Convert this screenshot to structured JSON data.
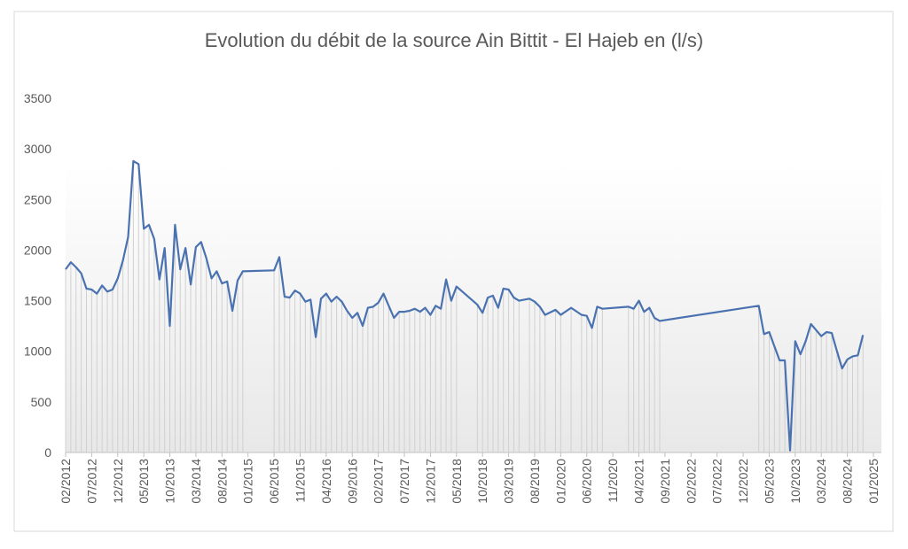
{
  "chart_data": {
    "type": "line",
    "title": "Evolution du débit de la source Ain Bittit - El Hajeb en (l/s)",
    "color": "#4a72b0",
    "drop_lines": true,
    "x": [
      "02/2012",
      "03/2012",
      "04/2012",
      "05/2012",
      "06/2012",
      "07/2012",
      "08/2012",
      "09/2012",
      "10/2012",
      "11/2012",
      "12/2012",
      "01/2013",
      "02/2013",
      "03/2013",
      "04/2013",
      "05/2013",
      "06/2013",
      "07/2013",
      "08/2013",
      "09/2013",
      "10/2013",
      "11/2013",
      "12/2013",
      "01/2014",
      "02/2014",
      "03/2014",
      "04/2014",
      "05/2014",
      "06/2014",
      "07/2014",
      "08/2014",
      "09/2014",
      "10/2014",
      "11/2014",
      "12/2014",
      "06/2015",
      "07/2015",
      "08/2015",
      "09/2015",
      "10/2015",
      "11/2015",
      "12/2015",
      "01/2016",
      "02/2016",
      "03/2016",
      "04/2016",
      "05/2016",
      "06/2016",
      "07/2016",
      "08/2016",
      "09/2016",
      "10/2016",
      "11/2016",
      "12/2016",
      "01/2017",
      "02/2017",
      "03/2017",
      "04/2017",
      "05/2017",
      "06/2017",
      "07/2017",
      "08/2017",
      "09/2017",
      "10/2017",
      "11/2017",
      "12/2017",
      "01/2018",
      "02/2018",
      "03/2018",
      "04/2018",
      "05/2018",
      "09/2018",
      "10/2018",
      "11/2018",
      "12/2018",
      "01/2019",
      "02/2019",
      "03/2019",
      "04/2019",
      "05/2019",
      "07/2019",
      "08/2019",
      "09/2019",
      "10/2019",
      "12/2019",
      "01/2020",
      "03/2020",
      "05/2020",
      "06/2020",
      "07/2020",
      "08/2020",
      "09/2020",
      "02/2021",
      "03/2021",
      "04/2021",
      "05/2021",
      "06/2021",
      "07/2021",
      "08/2021",
      "03/2023",
      "04/2023",
      "05/2023",
      "06/2023",
      "07/2023",
      "08/2023",
      "09/2023",
      "10/2023",
      "11/2023",
      "12/2023",
      "01/2024",
      "02/2024",
      "03/2024",
      "04/2024",
      "05/2024",
      "06/2024",
      "07/2024",
      "08/2024",
      "09/2024",
      "10/2024",
      "11/2024"
    ],
    "values": [
      1810,
      1880,
      1830,
      1770,
      1620,
      1610,
      1570,
      1650,
      1590,
      1610,
      1720,
      1900,
      2130,
      2880,
      2850,
      2210,
      2250,
      2110,
      1710,
      2020,
      1250,
      2250,
      1810,
      2020,
      1660,
      2030,
      2080,
      1920,
      1720,
      1790,
      1670,
      1690,
      1400,
      1700,
      1790,
      1800,
      1930,
      1540,
      1530,
      1600,
      1570,
      1490,
      1510,
      1140,
      1520,
      1570,
      1490,
      1540,
      1490,
      1400,
      1330,
      1380,
      1250,
      1430,
      1440,
      1480,
      1570,
      1450,
      1330,
      1390,
      1390,
      1400,
      1420,
      1390,
      1430,
      1360,
      1450,
      1420,
      1710,
      1500,
      1640,
      1460,
      1380,
      1530,
      1550,
      1430,
      1620,
      1610,
      1530,
      1500,
      1520,
      1490,
      1440,
      1360,
      1410,
      1360,
      1430,
      1360,
      1350,
      1230,
      1440,
      1420,
      1440,
      1420,
      1500,
      1390,
      1430,
      1330,
      1300,
      1450,
      1170,
      1190,
      1050,
      910,
      910,
      20,
      1100,
      970,
      1100,
      1270,
      1210,
      1150,
      1190,
      1180,
      1000,
      830,
      920,
      950,
      960,
      1160
    ],
    "xlim": [
      "02/2012",
      "01/2025"
    ],
    "xticks": [
      "02/2012",
      "07/2012",
      "12/2012",
      "05/2013",
      "10/2013",
      "03/2014",
      "08/2014",
      "01/2015",
      "06/2015",
      "11/2015",
      "04/2016",
      "09/2016",
      "02/2017",
      "07/2017",
      "12/2017",
      "05/2018",
      "10/2018",
      "03/2019",
      "08/2019",
      "01/2020",
      "06/2020",
      "11/2020",
      "04/2021",
      "09/2021",
      "02/2022",
      "07/2022",
      "12/2022",
      "05/2023",
      "10/2023",
      "03/2024",
      "08/2024",
      "01/2025"
    ],
    "ylim": [
      0,
      3500
    ],
    "yticks": [
      0,
      500,
      1000,
      1500,
      2000,
      2500,
      3000,
      3500
    ]
  }
}
